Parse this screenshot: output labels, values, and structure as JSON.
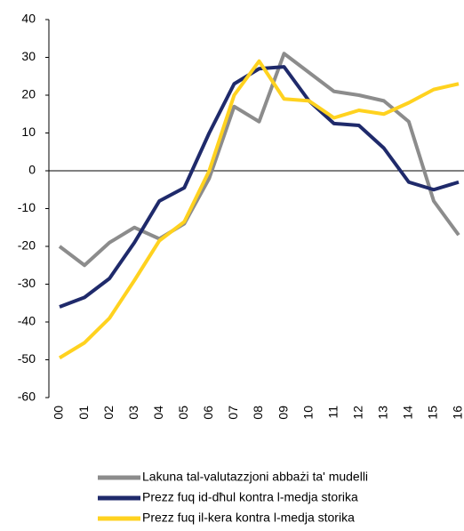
{
  "chart_data": {
    "type": "line",
    "categories": [
      "00",
      "01",
      "02",
      "03",
      "04",
      "05",
      "06",
      "07",
      "08",
      "09",
      "10",
      "11",
      "12",
      "13",
      "14",
      "15",
      "16"
    ],
    "series": [
      {
        "name": "Lakuna tal-valutazzjoni abbażi ta' mudelli",
        "color": "#8c8c8c",
        "values": [
          -20,
          -25,
          -19,
          -15,
          -18,
          -14,
          -2,
          17,
          13,
          31,
          26,
          21,
          20,
          18.5,
          13,
          -8,
          -17
        ]
      },
      {
        "name": "Prezz fuq id-dħul kontra l-medja storika",
        "color": "#1f2a6b",
        "values": [
          -36,
          -33.5,
          -28.5,
          -19,
          -8,
          -4.5,
          10,
          23,
          27,
          27.5,
          18.5,
          12.5,
          12,
          6,
          -3,
          -5,
          -3
        ]
      },
      {
        "name": "Prezz fuq il-kera kontra l-medja storika",
        "color": "#ffd21f",
        "values": [
          -49.5,
          -45.5,
          -39,
          -29,
          -18.5,
          -13.5,
          0,
          20,
          29,
          19,
          18.5,
          14,
          16,
          15,
          18,
          21.5,
          23
        ]
      }
    ],
    "ylim": [
      -60,
      40
    ],
    "yticks": [
      -60,
      -50,
      -40,
      -30,
      -20,
      -10,
      0,
      10,
      20,
      30,
      40
    ]
  }
}
